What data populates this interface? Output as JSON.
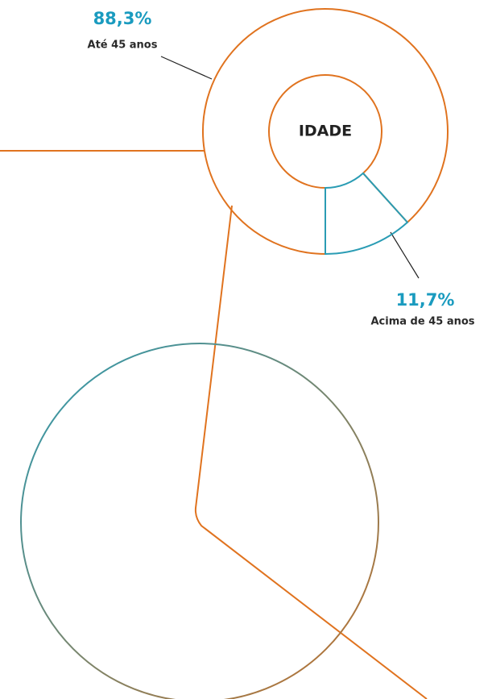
{
  "chart_data": {
    "type": "pie",
    "donut": true,
    "title": "IDADE",
    "categories": [
      "Até 45 anos",
      "Acima de 45 anos"
    ],
    "values": [
      88.3,
      11.7
    ],
    "value_labels": [
      "88,3%",
      "11,7%"
    ],
    "colors": [
      "#e0731f",
      "#2a9cb4"
    ]
  }
}
